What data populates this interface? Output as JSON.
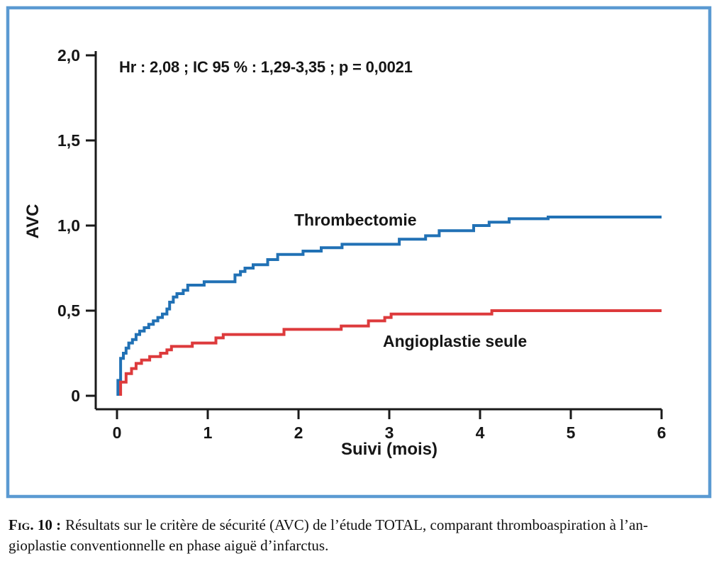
{
  "figure": {
    "caption_prefix": "Fig. 10 :",
    "caption_line1": "Résultats sur le critère de sécurité (AVC) de l’étude TOTAL, comparant thromboaspiration à l’an-",
    "caption_line2": "gioplastie conventionnelle en phase aiguë d’infarctus."
  },
  "colors": {
    "frame": "#5b9ad2",
    "axis": "#1a1a1a",
    "thrombectomie": "#2171b5",
    "angioplastie": "#dd3a3c"
  },
  "chart_data": {
    "type": "line",
    "subtype": "step-cumulative-incidence",
    "title": "",
    "annotation": "Hr : 2,08 ; IC 95 % : 1,29-3,35 ; p = 0,0021",
    "xlabel": "Suivi (mois)",
    "ylabel": "AVC",
    "xlim": [
      0,
      6
    ],
    "ylim": [
      0,
      2
    ],
    "grid": false,
    "legend": "inline-labels",
    "x_ticks": {
      "values": [
        0,
        1,
        2,
        3,
        4,
        5,
        6
      ],
      "labels": [
        "0",
        "1",
        "2",
        "3",
        "4",
        "5",
        "6"
      ]
    },
    "y_ticks": {
      "values": [
        0,
        0.5,
        1.0,
        1.5,
        2.0
      ],
      "labels": [
        "0",
        "0,5",
        "1,0",
        "1,5",
        "2,0"
      ]
    },
    "series": [
      {
        "id": "thrombectomie",
        "name": "Thrombectomie",
        "color": "#2171b5",
        "final_value": 1.05,
        "steps": [
          [
            0.01,
            0.09
          ],
          [
            0.04,
            0.22
          ],
          [
            0.07,
            0.25
          ],
          [
            0.1,
            0.28
          ],
          [
            0.13,
            0.31
          ],
          [
            0.17,
            0.33
          ],
          [
            0.21,
            0.36
          ],
          [
            0.25,
            0.38
          ],
          [
            0.3,
            0.4
          ],
          [
            0.35,
            0.42
          ],
          [
            0.4,
            0.44
          ],
          [
            0.45,
            0.46
          ],
          [
            0.5,
            0.48
          ],
          [
            0.55,
            0.51
          ],
          [
            0.58,
            0.55
          ],
          [
            0.62,
            0.58
          ],
          [
            0.66,
            0.6
          ],
          [
            0.73,
            0.62
          ],
          [
            0.78,
            0.65
          ],
          [
            0.96,
            0.67
          ],
          [
            1.3,
            0.71
          ],
          [
            1.36,
            0.73
          ],
          [
            1.41,
            0.75
          ],
          [
            1.5,
            0.77
          ],
          [
            1.66,
            0.8
          ],
          [
            1.77,
            0.83
          ],
          [
            2.05,
            0.85
          ],
          [
            2.25,
            0.87
          ],
          [
            2.48,
            0.89
          ],
          [
            3.11,
            0.92
          ],
          [
            3.4,
            0.94
          ],
          [
            3.55,
            0.97
          ],
          [
            3.93,
            1.0
          ],
          [
            4.1,
            1.02
          ],
          [
            4.32,
            1.04
          ],
          [
            4.75,
            1.05
          ]
        ]
      },
      {
        "id": "angioplastie",
        "name": "Angioplastie seule",
        "color": "#dd3a3c",
        "final_value": 0.5,
        "steps": [
          [
            0.04,
            0.08
          ],
          [
            0.1,
            0.13
          ],
          [
            0.16,
            0.16
          ],
          [
            0.21,
            0.19
          ],
          [
            0.27,
            0.21
          ],
          [
            0.36,
            0.23
          ],
          [
            0.48,
            0.25
          ],
          [
            0.55,
            0.27
          ],
          [
            0.6,
            0.29
          ],
          [
            0.83,
            0.31
          ],
          [
            1.09,
            0.34
          ],
          [
            1.17,
            0.36
          ],
          [
            1.84,
            0.39
          ],
          [
            2.47,
            0.41
          ],
          [
            2.77,
            0.44
          ],
          [
            2.95,
            0.46
          ],
          [
            3.02,
            0.48
          ],
          [
            4.13,
            0.5
          ]
        ]
      }
    ]
  }
}
